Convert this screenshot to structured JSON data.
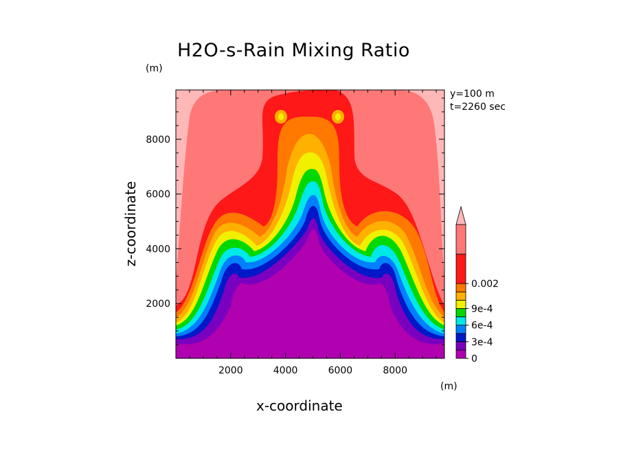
{
  "chart_data": {
    "type": "heatmap",
    "title": "H2O-s-Rain Mixing Ratio",
    "xlabel": "x-coordinate",
    "ylabel": "z-coordinate",
    "x_unit": "(m)",
    "y_unit": "(m)",
    "xlim": [
      0,
      9800
    ],
    "ylim": [
      0,
      9800
    ],
    "x_ticks": [
      2000,
      4000,
      6000,
      8000
    ],
    "y_ticks": [
      2000,
      4000,
      6000,
      8000
    ],
    "x_tick_labels": [
      "2000",
      "4000",
      "6000",
      "8000"
    ],
    "y_tick_labels": [
      "2000",
      "4000",
      "6000",
      "8000"
    ],
    "annotations": [
      "y=100 m",
      "t=2260 sec"
    ],
    "colorbar": {
      "levels": [
        0,
        0.00015,
        0.0003,
        0.00045,
        0.0006,
        0.00075,
        0.0009,
        0.00105,
        0.0015,
        0.002
      ],
      "labels": [
        {
          "value": 0,
          "text": "0"
        },
        {
          "value": 0.0003,
          "text": "3e-4"
        },
        {
          "value": 0.0006,
          "text": "6e-4"
        },
        {
          "value": 0.0009,
          "text": "9e-4"
        },
        {
          "value": 0.002,
          "text": "0.002"
        }
      ],
      "colors": [
        "#b000b0",
        "#7a00c0",
        "#0018c8",
        "#0080ff",
        "#00e8e8",
        "#00d800",
        "#f0f000",
        "#ffb000",
        "#ff7800",
        "#ff1818",
        "#ff7878",
        "#ffb8b8"
      ],
      "extend": "max"
    }
  }
}
